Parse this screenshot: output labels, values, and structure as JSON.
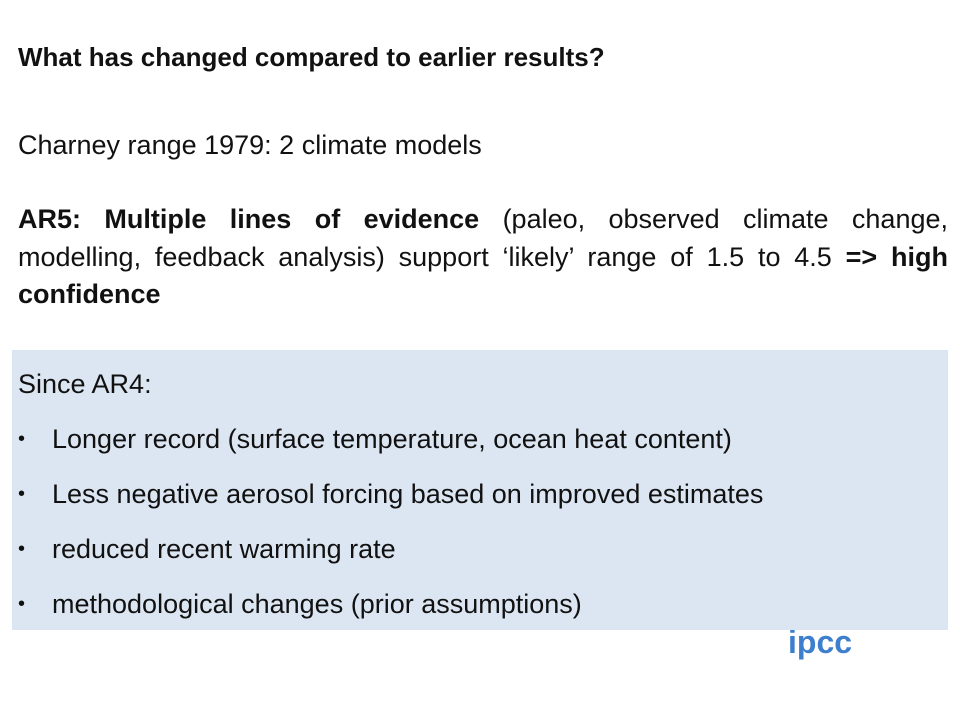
{
  "title": "What has changed compared to earlier results?",
  "paragraphs": [
    "Charney range 1979: 2 climate models"
  ],
  "paragraph_ar5": [
    "AR5: Multiple lines of evidence",
    " (paleo, observed climate change, modelling, feedback analysis) support ‘likely’ range of 1.5 to 4.5  ",
    "=> high confidence"
  ],
  "box": {
    "heading": "Since AR4:",
    "items": [
      "Longer record (surface temperature, ocean heat content)",
      "Less negative aerosol forcing based on improved estimates",
      "reduced recent warming rate",
      "methodological changes (prior assumptions)"
    ]
  },
  "logo": "ipcc"
}
